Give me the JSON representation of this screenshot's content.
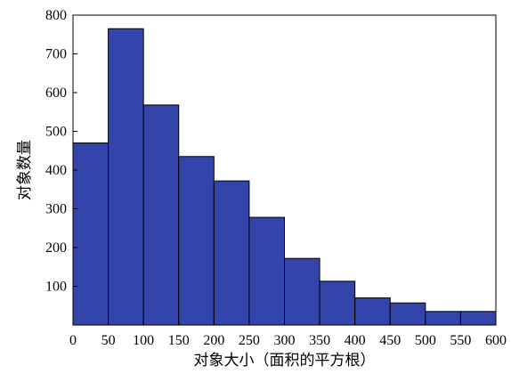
{
  "chart_data": {
    "type": "bar",
    "xlabel": "对象大小（面积的平方根）",
    "ylabel": "对象数量",
    "bin_edges": [
      0,
      50,
      100,
      150,
      200,
      250,
      300,
      350,
      400,
      450,
      500,
      550,
      600
    ],
    "values": [
      470,
      765,
      568,
      435,
      372,
      278,
      172,
      113,
      70,
      57,
      35,
      35
    ],
    "xlim": [
      0,
      600
    ],
    "ylim": [
      0,
      800
    ],
    "xticks": [
      "0",
      "50",
      "100",
      "150",
      "200",
      "250",
      "300",
      "350",
      "400",
      "450",
      "500",
      "550",
      "600"
    ],
    "yticks": [
      "100",
      "200",
      "300",
      "400",
      "500",
      "600",
      "700",
      "800"
    ],
    "bar_color": "#3344AA",
    "bar_edge_color": "#000000",
    "grid": false
  }
}
